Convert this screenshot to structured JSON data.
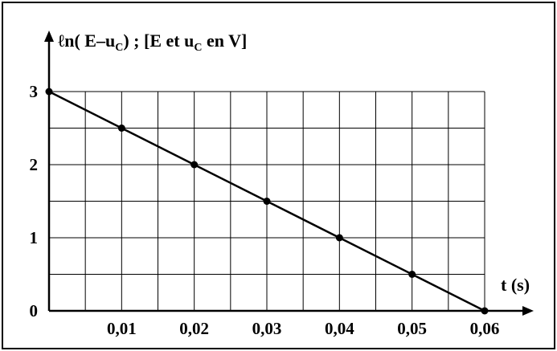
{
  "chart_data": {
    "type": "line",
    "ylabel_parts": {
      "prefix": "ℓn( E–u",
      "sub1": "C",
      "middle": ") ; [E et u",
      "sub2": "C",
      "suffix": " en V]"
    },
    "xlabel": "t (s)",
    "x_ticks": [
      "0,01",
      "0,02",
      "0,03",
      "0,04",
      "0,05",
      "0,06"
    ],
    "y_ticks": [
      "0",
      "1",
      "2",
      "3"
    ],
    "xlim": [
      0,
      0.06
    ],
    "ylim": [
      0,
      3
    ],
    "grid": true,
    "series": [
      {
        "x": [
          0,
          0.01,
          0.02,
          0.03,
          0.04,
          0.05,
          0.06
        ],
        "y": [
          3,
          2.5,
          2,
          1.5,
          1,
          0.5,
          0
        ]
      }
    ],
    "colors": {
      "line": "#000000",
      "grid": "#000000",
      "marker": "#000000"
    }
  }
}
